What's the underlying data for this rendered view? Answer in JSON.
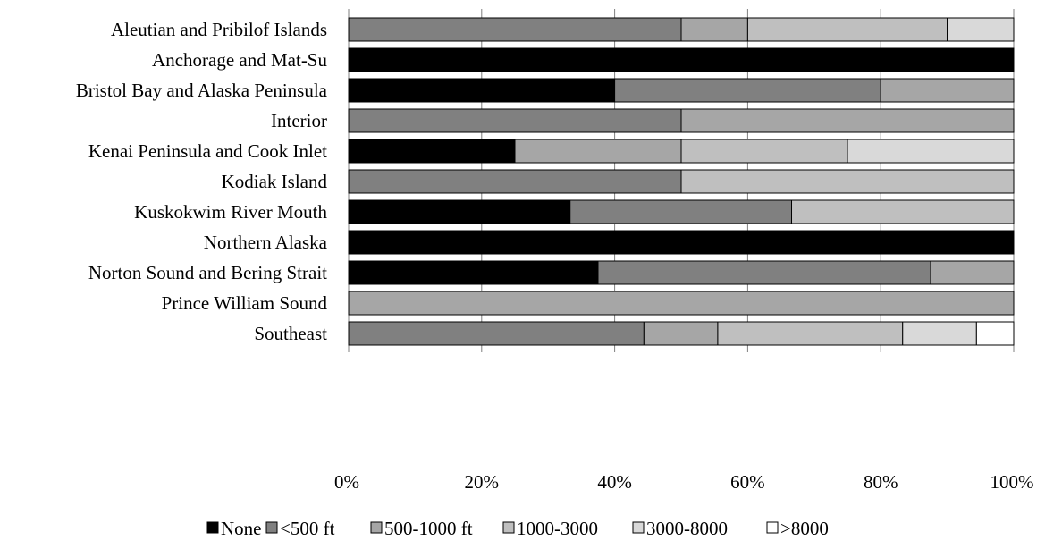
{
  "chart_data": {
    "type": "bar",
    "orientation": "horizontal",
    "stacked": "percent",
    "title": "",
    "xlabel": "",
    "ylabel": "",
    "xlim": [
      0,
      100
    ],
    "grid": "vertical",
    "legend_position": "bottom",
    "categories": [
      "Aleutian and Pribilof Islands",
      "Anchorage and Mat-Su",
      "Bristol Bay and Alaska Peninsula",
      "Interior",
      "Kenai Peninsula and Cook Inlet",
      "Kodiak Island",
      "Kuskokwim River Mouth",
      "Northern Alaska",
      "Norton Sound and Bering Strait",
      "Prince William Sound",
      "Southeast"
    ],
    "x_ticks": [
      "0%",
      "20%",
      "40%",
      "60%",
      "80%",
      "100%"
    ],
    "series": [
      {
        "name": "None",
        "color": "#000000",
        "values": [
          0,
          100,
          40,
          0,
          25,
          0,
          33.3,
          100,
          37.5,
          0,
          0
        ]
      },
      {
        "name": "<500 ft",
        "color": "#808080",
        "values": [
          50,
          0,
          40,
          50,
          0,
          50,
          33.3,
          0,
          50,
          0,
          44.4
        ]
      },
      {
        "name": "500-1000 ft",
        "color": "#a6a6a6",
        "values": [
          10,
          0,
          20,
          50,
          25,
          0,
          0,
          0,
          12.5,
          100,
          11.1
        ]
      },
      {
        "name": "1000-3000",
        "color": "#bfbfbf",
        "values": [
          30,
          0,
          0,
          0,
          25,
          50,
          33.4,
          0,
          0,
          0,
          27.8
        ]
      },
      {
        "name": "3000-8000",
        "color": "#d9d9d9",
        "values": [
          10,
          0,
          0,
          0,
          25,
          0,
          0,
          0,
          0,
          0,
          11.1
        ]
      },
      {
        "name": ">8000",
        "color": "#ffffff",
        "values": [
          0,
          0,
          0,
          0,
          0,
          0,
          0,
          0,
          0,
          0,
          5.6
        ]
      }
    ]
  }
}
